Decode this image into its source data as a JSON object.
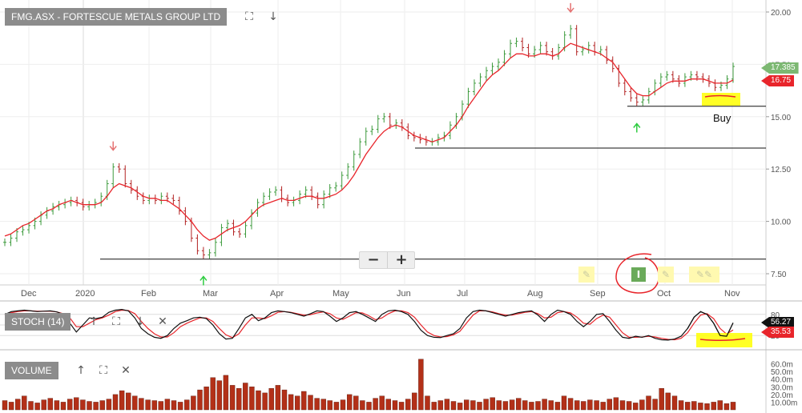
{
  "panels": {
    "price_label": "FMG.ASX - FORTESCUE METALS GROUP LTD",
    "stoch_label": "STOCH (14)",
    "volume_label": "VOLUME"
  },
  "toolbar_icons": {
    "expand": "⛶",
    "down": "↓",
    "up": "↑",
    "close": "✕"
  },
  "badges": {
    "last_price": "17.385",
    "ma_value": "16.75",
    "stoch_k": "56.27",
    "stoch_d": "35.53"
  },
  "annotation": {
    "buy_text": "Buy"
  },
  "zoom": {
    "minus": "−",
    "plus": "+"
  },
  "colors": {
    "up_candle": "#3c9a3c",
    "down_candle": "#b22222",
    "ma_line": "#e8252b",
    "stoch_k_line": "#111111",
    "stoch_d_line": "#e8252b",
    "volume_bar": "#b33018",
    "highlight": "#ffff00",
    "buy_arrow": "#2ecc40",
    "sell_arrow": "#e57373",
    "panel_label_bg": "#8c8c8c",
    "last_badge": "#7cb872",
    "ma_badge": "#e8252b"
  },
  "chart_data": [
    {
      "type": "candlestick",
      "title": "FMG.ASX - FORTESCUE METALS GROUP LTD",
      "x_ticks": [
        "Dec",
        "2020",
        "Feb",
        "Mar",
        "Apr",
        "May",
        "Jun",
        "Jul",
        "Aug",
        "Sep",
        "Oct",
        "Nov"
      ],
      "y_ticks": [
        "20.00",
        "17.50",
        "15.00",
        "12.50",
        "10.00",
        "7.50"
      ],
      "ylim": [
        7,
        20.3
      ],
      "grid": true,
      "series": [
        {
          "name": "FMG.ASX",
          "values": [
            9.0,
            9.2,
            9.5,
            9.6,
            9.8,
            10.0,
            10.3,
            10.5,
            10.7,
            10.8,
            10.9,
            11.0,
            10.9,
            10.7,
            10.8,
            10.9,
            11.2,
            11.8,
            12.6,
            12.5,
            11.8,
            11.5,
            11.2,
            11.0,
            11.1,
            11.0,
            11.2,
            11.1,
            11.0,
            10.5,
            10.0,
            9.2,
            8.6,
            8.4,
            8.5,
            9.0,
            9.7,
            9.9,
            9.5,
            9.4,
            9.8,
            10.4,
            10.9,
            11.2,
            11.4,
            11.5,
            11.1,
            10.9,
            11.0,
            11.3,
            11.5,
            11.2,
            10.8,
            11.3,
            11.6,
            11.7,
            12.2,
            12.6,
            13.2,
            13.8,
            14.3,
            14.4,
            14.9,
            15.0,
            14.6,
            14.7,
            14.5,
            14.1,
            14.0,
            13.9,
            13.8,
            13.8,
            14.0,
            14.1,
            14.6,
            15.0,
            15.6,
            16.2,
            16.6,
            16.9,
            17.2,
            17.4,
            17.6,
            18.0,
            18.5,
            18.6,
            18.3,
            18.0,
            18.2,
            18.4,
            18.1,
            17.9,
            18.3,
            18.9,
            19.2,
            18.1,
            18.2,
            18.4,
            18.1,
            18.2,
            17.7,
            17.3,
            16.6,
            16.2,
            15.9,
            15.7,
            15.8,
            16.2,
            16.6,
            16.9,
            17.0,
            16.8,
            16.6,
            16.9,
            17.0,
            16.9,
            16.8,
            16.6,
            16.4,
            16.5,
            16.8,
            17.4
          ]
        },
        {
          "name": "MA",
          "values": [
            9.3,
            9.4,
            9.6,
            9.8,
            9.9,
            10.1,
            10.3,
            10.5,
            10.6,
            10.8,
            10.9,
            11.0,
            10.9,
            10.8,
            10.8,
            10.8,
            10.9,
            11.2,
            11.6,
            11.8,
            11.7,
            11.6,
            11.4,
            11.2,
            11.1,
            11.1,
            11.0,
            11.0,
            10.8,
            10.6,
            10.3,
            10.0,
            9.6,
            9.3,
            9.1,
            9.2,
            9.4,
            9.6,
            9.7,
            9.8,
            10.0,
            10.3,
            10.6,
            10.8,
            10.9,
            11.0,
            11.1,
            11.0,
            11.0,
            11.1,
            11.2,
            11.2,
            11.1,
            11.1,
            11.2,
            11.3,
            11.5,
            11.8,
            12.2,
            12.7,
            13.2,
            13.6,
            14.0,
            14.3,
            14.5,
            14.6,
            14.5,
            14.3,
            14.1,
            14.0,
            13.9,
            13.8,
            13.9,
            14.0,
            14.3,
            14.6,
            15.0,
            15.5,
            15.9,
            16.3,
            16.7,
            17.0,
            17.2,
            17.5,
            17.8,
            18.0,
            18.0,
            17.9,
            17.9,
            18.0,
            18.0,
            17.9,
            18.0,
            18.3,
            18.5,
            18.4,
            18.3,
            18.2,
            18.1,
            18.0,
            17.8,
            17.6,
            17.2,
            16.8,
            16.4,
            16.1,
            16.0,
            16.0,
            16.2,
            16.4,
            16.6,
            16.7,
            16.7,
            16.7,
            16.8,
            16.8,
            16.8,
            16.7,
            16.6,
            16.6,
            16.6,
            16.75
          ]
        }
      ],
      "horizontal_lines": [
        8.2,
        13.5,
        15.5
      ],
      "markers": [
        {
          "type": "sell-arrow",
          "x_index": 18
        },
        {
          "type": "buy-arrow",
          "x_index": 33
        },
        {
          "type": "sell-arrow",
          "x_index": 94
        },
        {
          "type": "buy-arrow",
          "x_index": 105
        }
      ]
    },
    {
      "type": "line",
      "title": "STOCH (14)",
      "y_ticks": [
        "80",
        "50",
        "20"
      ],
      "ylim": [
        0,
        100
      ],
      "series": [
        {
          "name": "%K",
          "values": [
            80,
            88,
            90,
            92,
            90,
            88,
            89,
            90,
            87,
            80,
            55,
            30,
            50,
            70,
            68,
            72,
            86,
            92,
            94,
            90,
            70,
            40,
            25,
            15,
            12,
            20,
            40,
            55,
            62,
            70,
            72,
            68,
            50,
            25,
            10,
            12,
            40,
            70,
            80,
            62,
            70,
            85,
            90,
            88,
            85,
            80,
            75,
            82,
            90,
            88,
            75,
            60,
            70,
            85,
            88,
            80,
            70,
            60,
            80,
            90,
            92,
            88,
            80,
            60,
            35,
            20,
            15,
            14,
            20,
            25,
            40,
            70,
            88,
            92,
            90,
            85,
            80,
            75,
            80,
            85,
            88,
            90,
            78,
            60,
            80,
            92,
            88,
            80,
            60,
            45,
            60,
            80,
            82,
            60,
            35,
            15,
            12,
            18,
            15,
            20,
            12,
            8,
            7,
            10,
            18,
            40,
            72,
            88,
            80,
            55,
            20,
            18,
            56
          ]
        },
        {
          "name": "%D",
          "values": [
            78,
            85,
            88,
            90,
            90,
            89,
            89,
            89,
            87,
            82,
            70,
            45,
            45,
            55,
            65,
            70,
            78,
            88,
            92,
            91,
            82,
            60,
            40,
            25,
            16,
            16,
            28,
            45,
            55,
            63,
            70,
            70,
            60,
            40,
            22,
            14,
            25,
            50,
            70,
            70,
            68,
            76,
            86,
            88,
            86,
            82,
            78,
            79,
            84,
            87,
            82,
            70,
            66,
            75,
            85,
            84,
            76,
            65,
            70,
            82,
            90,
            90,
            85,
            72,
            50,
            30,
            20,
            16,
            17,
            22,
            32,
            55,
            78,
            90,
            90,
            87,
            82,
            78,
            78,
            82,
            86,
            88,
            82,
            70,
            72,
            85,
            88,
            84,
            72,
            55,
            52,
            68,
            78,
            72,
            50,
            28,
            15,
            15,
            16,
            18,
            16,
            12,
            9,
            8,
            12,
            28,
            55,
            78,
            82,
            68,
            40,
            24,
            36
          ]
        }
      ]
    },
    {
      "type": "bar",
      "title": "VOLUME",
      "y_ticks": [
        "60.0m",
        "50.0m",
        "40.0m",
        "30.0m",
        "20.0m",
        "10.00m"
      ],
      "ylim": [
        0,
        70
      ],
      "values": [
        12,
        10,
        14,
        18,
        11,
        9,
        13,
        15,
        12,
        10,
        14,
        16,
        13,
        11,
        10,
        12,
        14,
        20,
        25,
        22,
        18,
        15,
        13,
        12,
        11,
        14,
        12,
        10,
        13,
        18,
        26,
        30,
        42,
        38,
        45,
        32,
        28,
        35,
        30,
        25,
        22,
        28,
        32,
        26,
        20,
        18,
        24,
        19,
        15,
        14,
        12,
        10,
        13,
        20,
        18,
        12,
        10,
        15,
        18,
        14,
        12,
        10,
        14,
        22,
        66,
        18,
        10,
        12,
        14,
        11,
        9,
        13,
        12,
        10,
        14,
        16,
        12,
        11,
        13,
        15,
        12,
        10,
        11,
        14,
        12,
        10,
        18,
        15,
        12,
        11,
        13,
        12,
        10,
        14,
        16,
        12,
        11,
        9,
        13,
        18,
        14,
        28,
        22,
        18,
        12,
        10,
        11,
        9,
        8,
        10,
        12,
        8,
        10
      ]
    }
  ]
}
